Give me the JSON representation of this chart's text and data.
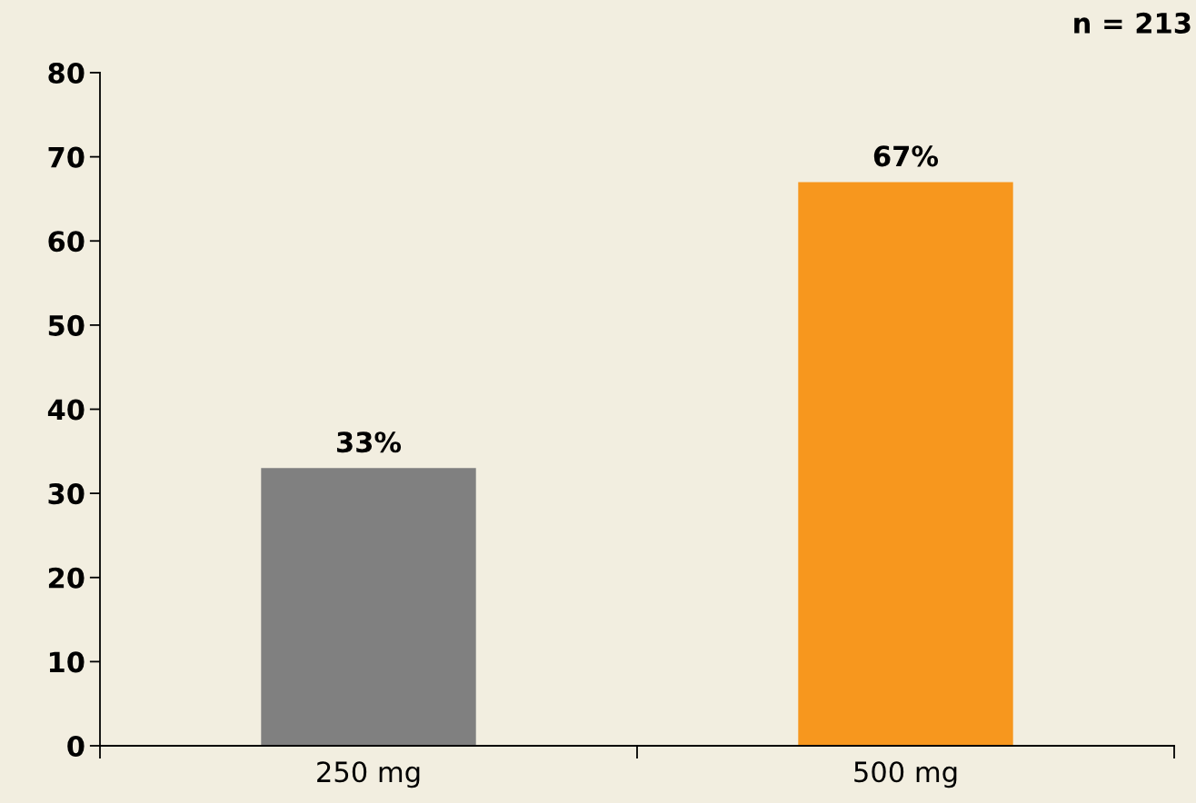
{
  "chart_data": {
    "type": "bar",
    "categories": [
      "250 mg",
      "500 mg"
    ],
    "values": [
      33,
      67
    ],
    "colors": [
      "#808080",
      "#f7971e"
    ],
    "value_labels": [
      "33%",
      "67%"
    ],
    "ylim": [
      0,
      80
    ],
    "yticks": [
      0,
      10,
      20,
      30,
      40,
      50,
      60,
      70,
      80
    ],
    "annotations": [
      "n = 213"
    ],
    "grid": false,
    "legend": false
  }
}
